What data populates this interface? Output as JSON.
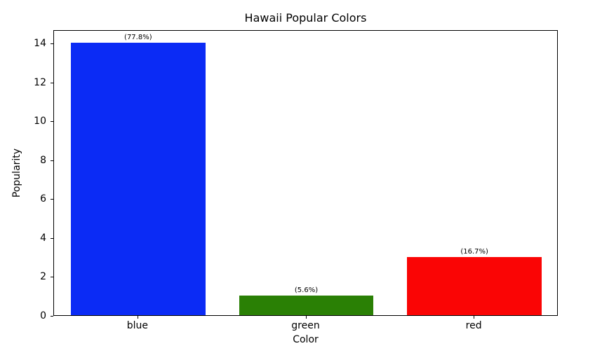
{
  "chart_data": {
    "type": "bar",
    "title": "Hawaii Popular Colors",
    "xlabel": "Color",
    "ylabel": "Popularity",
    "categories": [
      "blue",
      "green",
      "red"
    ],
    "values": [
      14,
      1,
      3
    ],
    "bar_labels": [
      "(77.8%)",
      "(5.6%)",
      "(16.7%)"
    ],
    "bar_colors": [
      "#0b2bf5",
      "#2a8005",
      "#fa0505"
    ],
    "yticks": [
      0,
      2,
      4,
      6,
      8,
      10,
      12,
      14
    ],
    "ylim": [
      0,
      14.7
    ],
    "grid": false,
    "legend": null
  }
}
